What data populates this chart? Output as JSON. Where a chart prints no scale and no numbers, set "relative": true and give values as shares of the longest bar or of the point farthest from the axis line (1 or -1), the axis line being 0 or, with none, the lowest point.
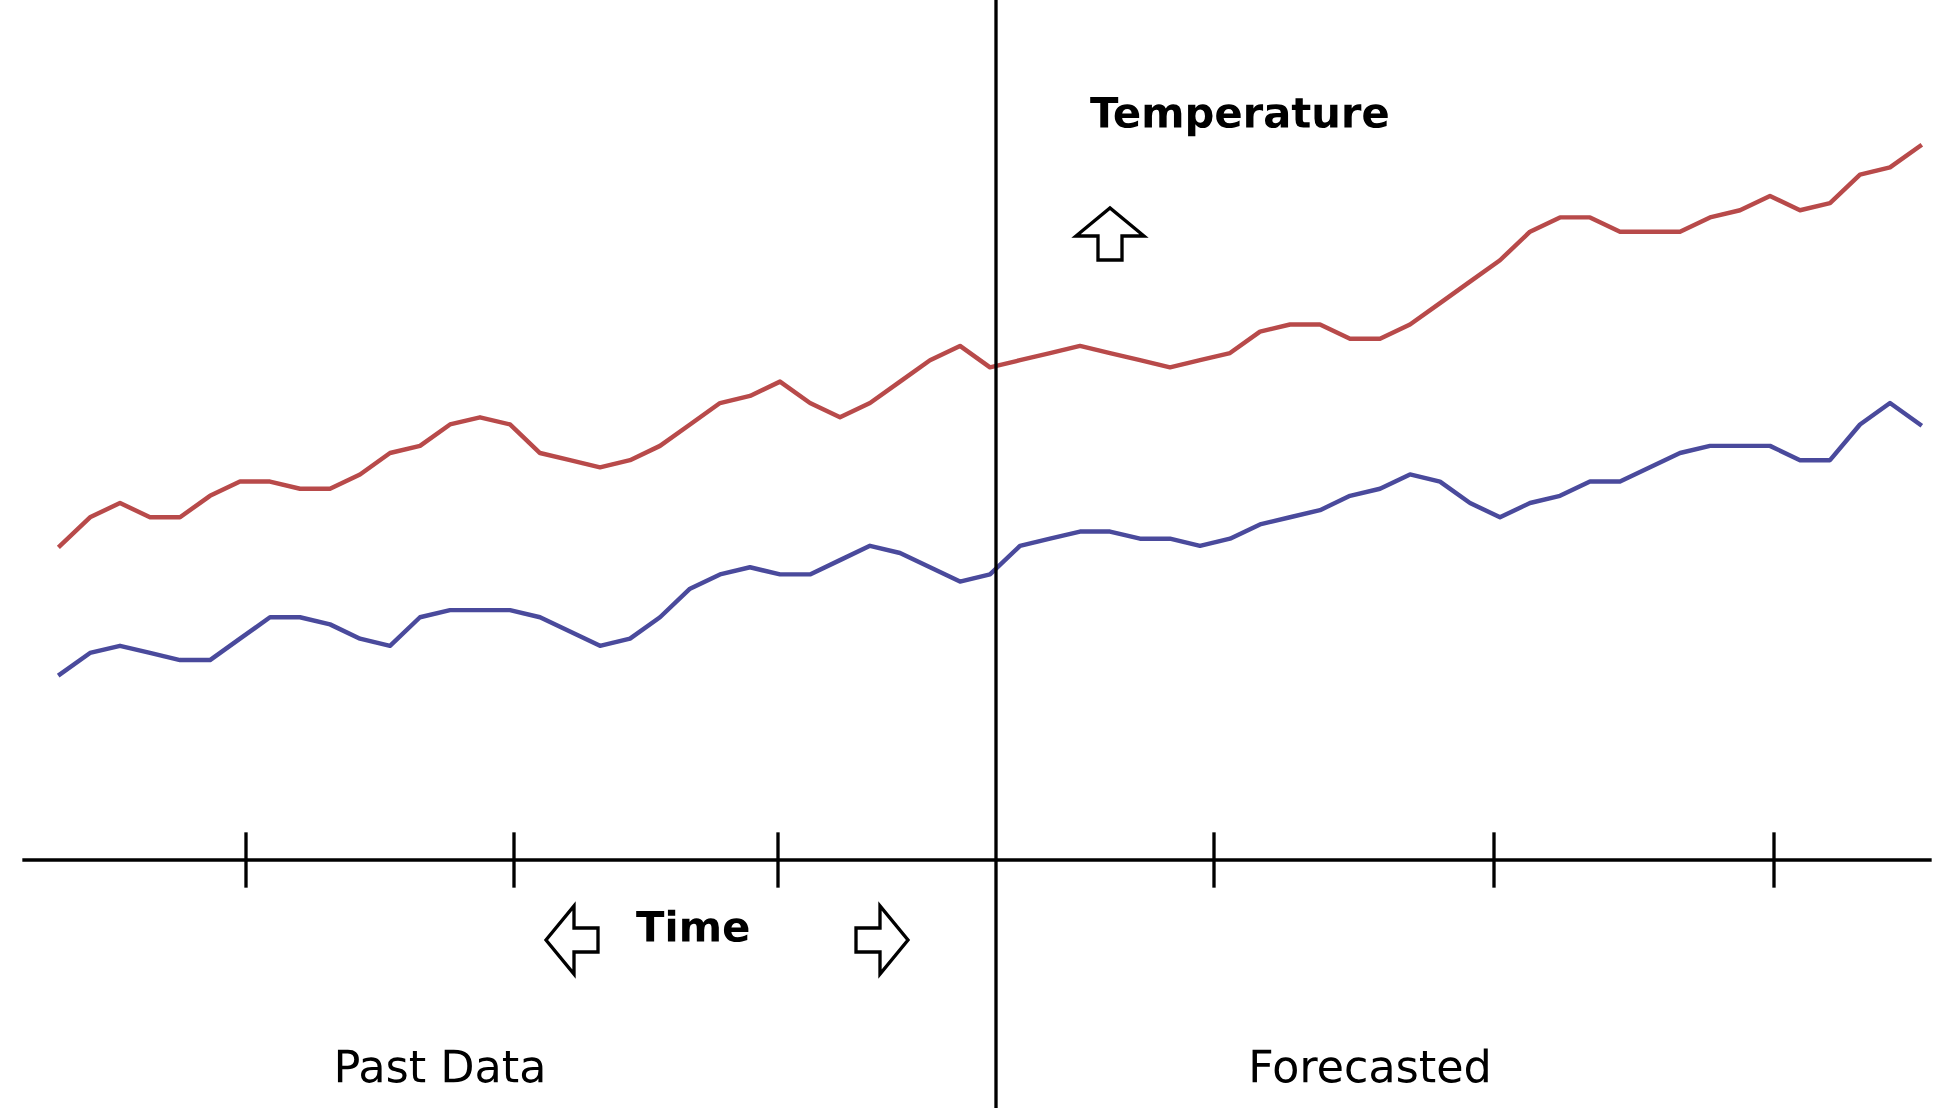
{
  "chart_data": {
    "type": "line",
    "relative": true,
    "annotations": [
      "Temperature",
      "Time",
      "Past Data",
      "Forecasted"
    ],
    "categories": [
      null,
      null,
      null,
      null,
      null,
      null,
      null,
      null,
      null,
      null,
      null,
      null,
      null,
      null,
      null,
      null,
      null,
      null,
      null,
      null,
      null,
      null,
      null,
      null,
      null,
      null,
      null,
      null,
      null,
      null,
      null,
      null,
      null,
      null,
      null,
      null,
      null,
      null,
      null,
      null,
      null,
      null,
      null,
      null,
      null,
      null,
      null,
      null,
      null,
      null,
      null,
      null,
      null,
      null,
      null,
      null,
      null,
      null,
      null,
      null,
      null,
      null,
      null
    ],
    "marker": "none",
    "line_style": "solid",
    "series": [
      {
        "color": "#b84a4a",
        "values": [
          0.44,
          0.48,
          0.5,
          0.48,
          0.48,
          0.51,
          0.53,
          0.53,
          0.52,
          0.52,
          0.54,
          0.57,
          0.58,
          0.61,
          0.62,
          0.61,
          0.57,
          0.56,
          0.55,
          0.56,
          0.58,
          0.61,
          0.64,
          0.65,
          0.67,
          0.64,
          0.62,
          0.64,
          0.67,
          0.7,
          0.72,
          0.69,
          0.7,
          0.71,
          0.72,
          0.71,
          0.7,
          0.69,
          0.7,
          0.71,
          0.74,
          0.75,
          0.75,
          0.73,
          0.73,
          0.75,
          0.78,
          0.81,
          0.84,
          0.88,
          0.9,
          0.9,
          0.88,
          0.88,
          0.88,
          0.9,
          0.91,
          0.93,
          0.91,
          0.92,
          0.96,
          0.97,
          1.0
        ]
      },
      {
        "color": "#4a4a9c",
        "values": [
          0.26,
          0.29,
          0.3,
          0.29,
          0.28,
          0.28,
          0.31,
          0.34,
          0.34,
          0.33,
          0.31,
          0.3,
          0.34,
          0.35,
          0.35,
          0.35,
          0.34,
          0.32,
          0.3,
          0.31,
          0.34,
          0.38,
          0.4,
          0.41,
          0.4,
          0.4,
          0.42,
          0.44,
          0.43,
          0.41,
          0.39,
          0.4,
          0.44,
          0.45,
          0.46,
          0.46,
          0.45,
          0.45,
          0.44,
          0.45,
          0.47,
          0.48,
          0.49,
          0.51,
          0.52,
          0.54,
          0.53,
          0.5,
          0.48,
          0.5,
          0.51,
          0.53,
          0.53,
          0.55,
          0.57,
          0.58,
          0.58,
          0.58,
          0.56,
          0.56,
          0.61,
          0.64,
          0.61
        ]
      }
    ]
  }
}
